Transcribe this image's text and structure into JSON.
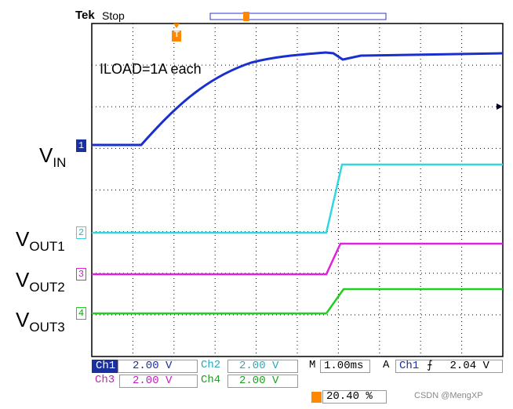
{
  "header": {
    "brand": "Tek",
    "state": "Stop",
    "trigger_marker": "T"
  },
  "annotation": "ILOAD=1A each",
  "labels": [
    {
      "main": "V",
      "sub": "IN"
    },
    {
      "main": "V",
      "sub": "OUT1"
    },
    {
      "main": "V",
      "sub": "OUT2"
    },
    {
      "main": "V",
      "sub": "OUT3"
    }
  ],
  "channel_markers": [
    "1",
    "2",
    "3",
    "4"
  ],
  "status": {
    "ch1": "Ch1",
    "ch1_scale": "2.00 V",
    "ch2": "Ch2",
    "ch2_scale": "2.00 V",
    "time_prefix": "M",
    "time_scale": "1.00ms",
    "trigger_mode": "A",
    "trigger_source": "Ch1",
    "trigger_level": "2.04 V",
    "ch3": "Ch3",
    "ch3_scale": "2.00 V",
    "ch4": "Ch4",
    "ch4_scale": "2.00 V",
    "trigger_position": "20.40 %"
  },
  "watermark": "CSDN @MengXP"
}
